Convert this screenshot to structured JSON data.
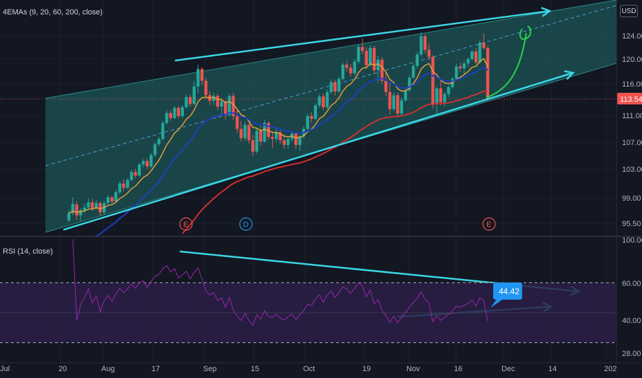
{
  "indicators": {
    "price_label": "4EMAs (9, 20, 60, 200, close)",
    "rsi_label": "RSI (14, close)"
  },
  "currency": "USD",
  "price_axis": {
    "ticks": [
      "124.00",
      "120.00",
      "116.00",
      "111.00",
      "107.00",
      "103.00",
      "99.00",
      "95.50"
    ],
    "last_price": "113.54"
  },
  "rsi_axis": {
    "ticks": [
      "100.00",
      "60.00",
      "40.00",
      "28.00"
    ],
    "last_value": "44.42"
  },
  "time_axis": {
    "ticks": [
      "Jul",
      "20",
      "Aug",
      "17",
      "Sep",
      "15",
      "Oct",
      "19",
      "Nov",
      "16",
      "Dec",
      "14",
      "202"
    ]
  },
  "events": [
    "E",
    "D",
    "E"
  ],
  "colors": {
    "background": "#131722",
    "up_candle": "#26a69a",
    "down_candle": "#ef5350",
    "ema9": "#f2a33a",
    "ema20": "#1e3fbf",
    "ema60": "#d32f2f",
    "channel_fill": "#1f6b68",
    "trendline": "#3ad7e6",
    "rsi_line": "#9c27b0",
    "rsi_band": "#2a1f45",
    "projection": "#27d44a",
    "last_price_badge": "#ef5350",
    "rsi_badge": "#2196f3"
  },
  "chart_data": [
    {
      "type": "candlestick",
      "title": "4EMAs (9, 20, 60, 200, close)",
      "ylim": [
        94,
        126
      ],
      "last_price": 113.54,
      "candles": [
        {
          "t": "Jul 13",
          "o": 95.9,
          "h": 97.4,
          "l": 95.7,
          "c": 96.9
        },
        {
          "t": "Jul 14",
          "o": 96.9,
          "h": 99.1,
          "l": 96.6,
          "c": 98.2
        },
        {
          "t": "Jul 15",
          "o": 98.1,
          "h": 98.6,
          "l": 96.0,
          "c": 96.6
        },
        {
          "t": "Jul 16",
          "o": 96.6,
          "h": 97.6,
          "l": 95.8,
          "c": 97.3
        },
        {
          "t": "Jul 17",
          "o": 97.3,
          "h": 98.2,
          "l": 96.9,
          "c": 97.7
        },
        {
          "t": "Jul 20",
          "o": 97.7,
          "h": 98.9,
          "l": 97.5,
          "c": 98.4
        },
        {
          "t": "Jul 21",
          "o": 98.4,
          "h": 98.9,
          "l": 97.2,
          "c": 97.6
        },
        {
          "t": "Jul 22",
          "o": 97.6,
          "h": 98.7,
          "l": 97.3,
          "c": 98.3
        },
        {
          "t": "Jul 23",
          "o": 98.3,
          "h": 98.5,
          "l": 96.5,
          "c": 97.0
        },
        {
          "t": "Jul 24",
          "o": 97.0,
          "h": 98.6,
          "l": 96.7,
          "c": 98.3
        },
        {
          "t": "Jul 27",
          "o": 98.3,
          "h": 99.4,
          "l": 98.0,
          "c": 99.1
        },
        {
          "t": "Jul 28",
          "o": 99.1,
          "h": 99.3,
          "l": 98.2,
          "c": 98.5
        },
        {
          "t": "Jul 29",
          "o": 98.5,
          "h": 100.1,
          "l": 98.3,
          "c": 99.8
        },
        {
          "t": "Jul 30",
          "o": 99.8,
          "h": 101.3,
          "l": 99.5,
          "c": 101.0
        },
        {
          "t": "Jul 31",
          "o": 101.0,
          "h": 101.6,
          "l": 99.9,
          "c": 100.4
        },
        {
          "t": "Aug 3",
          "o": 100.4,
          "h": 101.7,
          "l": 100.2,
          "c": 101.5
        },
        {
          "t": "Aug 4",
          "o": 101.5,
          "h": 102.9,
          "l": 101.3,
          "c": 102.6
        },
        {
          "t": "Aug 5",
          "o": 102.6,
          "h": 103.0,
          "l": 101.7,
          "c": 102.1
        },
        {
          "t": "Aug 6",
          "o": 102.1,
          "h": 103.9,
          "l": 101.9,
          "c": 103.7
        },
        {
          "t": "Aug 7",
          "o": 103.7,
          "h": 104.5,
          "l": 103.2,
          "c": 104.2
        },
        {
          "t": "Aug 10",
          "o": 104.2,
          "h": 104.6,
          "l": 103.0,
          "c": 103.4
        },
        {
          "t": "Aug 11",
          "o": 103.4,
          "h": 105.4,
          "l": 103.2,
          "c": 105.1
        },
        {
          "t": "Aug 12",
          "o": 105.1,
          "h": 107.0,
          "l": 104.8,
          "c": 106.7
        },
        {
          "t": "Aug 13",
          "o": 106.7,
          "h": 107.8,
          "l": 106.4,
          "c": 107.5
        },
        {
          "t": "Aug 14",
          "o": 107.5,
          "h": 110.2,
          "l": 107.2,
          "c": 109.9
        },
        {
          "t": "Aug 17",
          "o": 109.9,
          "h": 111.8,
          "l": 109.6,
          "c": 111.4
        },
        {
          "t": "Aug 18",
          "o": 111.4,
          "h": 111.8,
          "l": 110.2,
          "c": 110.6
        },
        {
          "t": "Aug 19",
          "o": 110.6,
          "h": 112.5,
          "l": 110.4,
          "c": 112.2
        },
        {
          "t": "Aug 20",
          "o": 112.2,
          "h": 112.5,
          "l": 110.5,
          "c": 110.9
        },
        {
          "t": "Aug 21",
          "o": 110.9,
          "h": 112.6,
          "l": 110.6,
          "c": 112.3
        },
        {
          "t": "Aug 24",
          "o": 112.3,
          "h": 114.3,
          "l": 112.1,
          "c": 113.9
        },
        {
          "t": "Aug 25",
          "o": 113.9,
          "h": 114.3,
          "l": 112.4,
          "c": 112.8
        },
        {
          "t": "Aug 26",
          "o": 112.8,
          "h": 116.5,
          "l": 112.6,
          "c": 115.6
        },
        {
          "t": "Aug 27",
          "o": 115.6,
          "h": 119.1,
          "l": 114.5,
          "c": 118.4
        },
        {
          "t": "Aug 28",
          "o": 118.4,
          "h": 118.7,
          "l": 115.8,
          "c": 116.5
        },
        {
          "t": "Aug 31",
          "o": 116.5,
          "h": 117.0,
          "l": 113.6,
          "c": 114.2
        },
        {
          "t": "Sep 1",
          "o": 114.2,
          "h": 114.9,
          "l": 112.7,
          "c": 113.3
        },
        {
          "t": "Sep 2",
          "o": 113.3,
          "h": 114.6,
          "l": 112.6,
          "c": 114.1
        },
        {
          "t": "Sep 3",
          "o": 114.1,
          "h": 114.4,
          "l": 111.8,
          "c": 112.4
        },
        {
          "t": "Sep 4",
          "o": 112.4,
          "h": 113.8,
          "l": 111.0,
          "c": 113.2
        },
        {
          "t": "Sep 8",
          "o": 113.2,
          "h": 113.5,
          "l": 110.4,
          "c": 111.1
        },
        {
          "t": "Sep 9",
          "o": 111.1,
          "h": 114.5,
          "l": 110.8,
          "c": 114.1
        },
        {
          "t": "Sep 10",
          "o": 114.1,
          "h": 114.6,
          "l": 110.3,
          "c": 110.9
        },
        {
          "t": "Sep 11",
          "o": 110.9,
          "h": 111.9,
          "l": 108.4,
          "c": 109.0
        },
        {
          "t": "Sep 14",
          "o": 109.0,
          "h": 110.2,
          "l": 107.1,
          "c": 107.6
        },
        {
          "t": "Sep 15",
          "o": 107.6,
          "h": 110.1,
          "l": 107.2,
          "c": 109.6
        },
        {
          "t": "Sep 16",
          "o": 109.6,
          "h": 110.0,
          "l": 106.8,
          "c": 107.3
        },
        {
          "t": "Sep 17",
          "o": 107.3,
          "h": 108.1,
          "l": 104.9,
          "c": 105.6
        },
        {
          "t": "Sep 18",
          "o": 105.6,
          "h": 109.2,
          "l": 105.3,
          "c": 108.7
        },
        {
          "t": "Sep 21",
          "o": 108.7,
          "h": 109.5,
          "l": 106.4,
          "c": 107.1
        },
        {
          "t": "Sep 22",
          "o": 107.1,
          "h": 110.4,
          "l": 106.9,
          "c": 109.9
        },
        {
          "t": "Sep 23",
          "o": 109.9,
          "h": 110.1,
          "l": 107.3,
          "c": 107.8
        },
        {
          "t": "Sep 24",
          "o": 107.8,
          "h": 108.5,
          "l": 106.2,
          "c": 107.5
        },
        {
          "t": "Sep 25",
          "o": 107.5,
          "h": 109.1,
          "l": 107.0,
          "c": 108.5
        },
        {
          "t": "Sep 28",
          "o": 108.5,
          "h": 108.8,
          "l": 106.8,
          "c": 107.3
        },
        {
          "t": "Sep 29",
          "o": 107.3,
          "h": 108.2,
          "l": 106.0,
          "c": 106.6
        },
        {
          "t": "Sep 30",
          "o": 106.6,
          "h": 107.9,
          "l": 106.1,
          "c": 107.5
        },
        {
          "t": "Oct 1",
          "o": 107.5,
          "h": 108.6,
          "l": 107.1,
          "c": 108.3
        },
        {
          "t": "Oct 2",
          "o": 108.3,
          "h": 108.5,
          "l": 106.0,
          "c": 106.6
        },
        {
          "t": "Oct 5",
          "o": 106.6,
          "h": 108.1,
          "l": 105.7,
          "c": 107.9
        },
        {
          "t": "Oct 6",
          "o": 107.9,
          "h": 109.4,
          "l": 107.5,
          "c": 109.0
        },
        {
          "t": "Oct 7",
          "o": 109.0,
          "h": 111.3,
          "l": 108.8,
          "c": 110.9
        },
        {
          "t": "Oct 8",
          "o": 110.9,
          "h": 111.5,
          "l": 109.9,
          "c": 110.5
        },
        {
          "t": "Oct 9",
          "o": 110.5,
          "h": 112.9,
          "l": 110.3,
          "c": 112.6
        },
        {
          "t": "Oct 12",
          "o": 112.6,
          "h": 114.4,
          "l": 112.2,
          "c": 114.0
        },
        {
          "t": "Oct 13",
          "o": 114.0,
          "h": 114.5,
          "l": 111.8,
          "c": 112.3
        },
        {
          "t": "Oct 14",
          "o": 112.3,
          "h": 115.1,
          "l": 112.0,
          "c": 114.7
        },
        {
          "t": "Oct 15",
          "o": 114.7,
          "h": 116.7,
          "l": 114.4,
          "c": 116.3
        },
        {
          "t": "Oct 16",
          "o": 116.3,
          "h": 116.7,
          "l": 114.2,
          "c": 114.8
        },
        {
          "t": "Oct 19",
          "o": 114.8,
          "h": 117.1,
          "l": 114.5,
          "c": 116.8
        },
        {
          "t": "Oct 20",
          "o": 116.8,
          "h": 119.4,
          "l": 116.5,
          "c": 119.1
        },
        {
          "t": "Oct 21",
          "o": 119.1,
          "h": 119.7,
          "l": 118.0,
          "c": 118.6
        },
        {
          "t": "Oct 22",
          "o": 118.6,
          "h": 119.2,
          "l": 117.1,
          "c": 117.7
        },
        {
          "t": "Oct 23",
          "o": 117.7,
          "h": 120.0,
          "l": 117.4,
          "c": 119.6
        },
        {
          "t": "Oct 26",
          "o": 119.6,
          "h": 122.5,
          "l": 119.3,
          "c": 122.1
        },
        {
          "t": "Oct 27",
          "o": 122.1,
          "h": 123.5,
          "l": 120.8,
          "c": 121.4
        },
        {
          "t": "Oct 28",
          "o": 121.4,
          "h": 122.0,
          "l": 118.4,
          "c": 119.0
        },
        {
          "t": "Oct 29",
          "o": 119.0,
          "h": 122.4,
          "l": 118.7,
          "c": 121.9
        },
        {
          "t": "Oct 30",
          "o": 121.9,
          "h": 122.3,
          "l": 117.6,
          "c": 118.2
        },
        {
          "t": "Nov 2",
          "o": 118.2,
          "h": 120.6,
          "l": 116.2,
          "c": 119.9
        },
        {
          "t": "Nov 3",
          "o": 119.9,
          "h": 120.3,
          "l": 115.9,
          "c": 116.5
        },
        {
          "t": "Nov 4",
          "o": 116.5,
          "h": 118.0,
          "l": 114.1,
          "c": 114.7
        },
        {
          "t": "Nov 5",
          "o": 114.7,
          "h": 116.3,
          "l": 111.2,
          "c": 112.0
        },
        {
          "t": "Nov 6",
          "o": 112.0,
          "h": 114.6,
          "l": 111.7,
          "c": 114.2
        },
        {
          "t": "Nov 9",
          "o": 114.2,
          "h": 114.6,
          "l": 110.7,
          "c": 111.3
        },
        {
          "t": "Nov 10",
          "o": 111.3,
          "h": 113.8,
          "l": 110.9,
          "c": 113.4
        },
        {
          "t": "Nov 11",
          "o": 113.4,
          "h": 115.4,
          "l": 113.1,
          "c": 115.0
        },
        {
          "t": "Nov 12",
          "o": 115.0,
          "h": 117.4,
          "l": 114.7,
          "c": 117.0
        },
        {
          "t": "Nov 13",
          "o": 117.0,
          "h": 119.3,
          "l": 116.8,
          "c": 118.9
        },
        {
          "t": "Nov 16",
          "o": 118.9,
          "h": 121.2,
          "l": 118.5,
          "c": 120.8
        },
        {
          "t": "Nov 17",
          "o": 120.8,
          "h": 124.6,
          "l": 120.4,
          "c": 123.9
        },
        {
          "t": "Nov 18",
          "o": 123.9,
          "h": 124.3,
          "l": 121.0,
          "c": 121.6
        },
        {
          "t": "Nov 19",
          "o": 121.6,
          "h": 122.7,
          "l": 119.8,
          "c": 120.4
        },
        {
          "t": "Nov 20",
          "o": 120.4,
          "h": 120.7,
          "l": 112.1,
          "c": 112.8
        },
        {
          "t": "Nov 23",
          "o": 112.8,
          "h": 115.6,
          "l": 111.0,
          "c": 115.3
        },
        {
          "t": "Nov 24",
          "o": 115.3,
          "h": 116.5,
          "l": 112.6,
          "c": 113.1
        },
        {
          "t": "Nov 25",
          "o": 113.1,
          "h": 114.7,
          "l": 112.4,
          "c": 114.4
        },
        {
          "t": "Nov 26",
          "o": 114.4,
          "h": 115.8,
          "l": 113.9,
          "c": 115.5
        },
        {
          "t": "Nov 27",
          "o": 115.5,
          "h": 117.1,
          "l": 115.2,
          "c": 116.8
        },
        {
          "t": "Nov 30",
          "o": 116.8,
          "h": 119.2,
          "l": 116.5,
          "c": 118.8
        },
        {
          "t": "Dec 1",
          "o": 118.8,
          "h": 119.4,
          "l": 117.9,
          "c": 118.5
        },
        {
          "t": "Dec 2",
          "o": 118.5,
          "h": 119.7,
          "l": 117.6,
          "c": 119.3
        },
        {
          "t": "Dec 3",
          "o": 119.3,
          "h": 120.3,
          "l": 118.7,
          "c": 120.0
        },
        {
          "t": "Dec 4",
          "o": 120.0,
          "h": 121.6,
          "l": 119.8,
          "c": 121.3
        },
        {
          "t": "Dec 7",
          "o": 121.3,
          "h": 121.9,
          "l": 119.1,
          "c": 119.5
        },
        {
          "t": "Dec 8",
          "o": 119.5,
          "h": 123.2,
          "l": 119.3,
          "c": 122.8
        },
        {
          "t": "Dec 9",
          "o": 122.8,
          "h": 124.4,
          "l": 121.6,
          "c": 121.9
        },
        {
          "t": "Dec 10",
          "o": 121.9,
          "h": 122.3,
          "l": 113.3,
          "c": 113.54
        }
      ],
      "ema_series": [
        {
          "name": "9",
          "color": "#f2a33a"
        },
        {
          "name": "20",
          "color": "#1e3fbf"
        },
        {
          "name": "60",
          "color": "#d32f2f"
        }
      ]
    },
    {
      "type": "line",
      "title": "RSI (14, close)",
      "ylim": [
        25,
        100
      ],
      "levels": [
        70,
        30
      ],
      "last_value": 44.42
    }
  ]
}
